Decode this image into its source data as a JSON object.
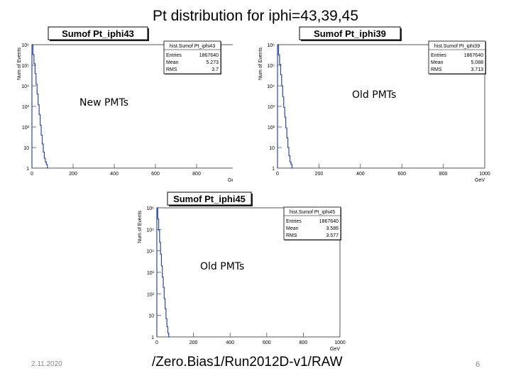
{
  "slide": {
    "title": "Pt distribution for iphi=43,39,45",
    "date": "2.11.2020",
    "path": "/Zero.Bias1/Run2012D-v1/RAW",
    "page": "6"
  },
  "chart_data": [
    {
      "type": "histogram",
      "title": "Sumof Pt_iphi43",
      "xlabel": "GeV",
      "ylabel": "Num of Events",
      "xlim": [
        0,
        1000
      ],
      "ylim": [
        1,
        1000000
      ],
      "yscale": "log",
      "xticks": [
        "0",
        "200",
        "400",
        "600",
        "800",
        "1000"
      ],
      "yticks": [
        "1",
        "10",
        "10²",
        "10³",
        "10⁴",
        "10⁵",
        "10⁶"
      ],
      "annotation": "New PMTs",
      "stats": {
        "name": "hist.Sumof Pt_iphi43",
        "rows": [
          [
            "Entries",
            "1867640"
          ],
          [
            "Mean",
            "5.273"
          ],
          [
            "RMS",
            "3.7"
          ]
        ]
      },
      "x": [
        0,
        5,
        10,
        15,
        20,
        25,
        30,
        35,
        40,
        45,
        50,
        55,
        60,
        65,
        70,
        75
      ],
      "values": [
        1000000,
        330000,
        120000,
        40000,
        12000,
        4000,
        1200,
        400,
        120,
        40,
        15,
        6,
        3,
        2,
        1.5,
        1
      ]
    },
    {
      "type": "histogram",
      "title": "Sumof Pt_iphi39",
      "xlabel": "GeV",
      "ylabel": "Num of Events",
      "xlim": [
        0,
        1000
      ],
      "ylim": [
        1,
        1000000
      ],
      "yscale": "log",
      "xticks": [
        "0",
        "200",
        "400",
        "600",
        "800",
        "1000"
      ],
      "yticks": [
        "1",
        "10",
        "10²",
        "10³",
        "10⁴",
        "10⁵",
        "10⁶"
      ],
      "annotation": "Old PMTs",
      "stats": {
        "name": "hist.Sumof Pt_iphi39",
        "rows": [
          [
            "Entries",
            "1867640"
          ],
          [
            "Mean",
            "5.088"
          ],
          [
            "RMS",
            "3.713"
          ]
        ]
      },
      "x": [
        0,
        5,
        10,
        15,
        20,
        25,
        30,
        35,
        40,
        45,
        50,
        55,
        60,
        65,
        70
      ],
      "values": [
        1000000,
        320000,
        110000,
        35000,
        10000,
        3000,
        900,
        300,
        90,
        30,
        10,
        4,
        2,
        1.5,
        1
      ]
    },
    {
      "type": "histogram",
      "title": "Sumof Pt_iphi45",
      "xlabel": "GeV",
      "ylabel": "Num of Events",
      "xlim": [
        0,
        1000
      ],
      "ylim": [
        1,
        1000000
      ],
      "yscale": "log",
      "xticks": [
        "0",
        "200",
        "400",
        "600",
        "800",
        "1000"
      ],
      "yticks": [
        "1",
        "10",
        "10²",
        "10³",
        "10⁴",
        "10⁵",
        "10⁶"
      ],
      "annotation": "Old PMTs",
      "stats": {
        "name": "hist.Sumof Pt_iphi45",
        "rows": [
          [
            "Entries",
            "1867640"
          ],
          [
            "Mean",
            "3.586"
          ],
          [
            "RMS",
            "3.577"
          ]
        ]
      },
      "x": [
        0,
        5,
        10,
        15,
        20,
        25,
        30,
        35,
        40,
        45,
        50,
        55,
        60,
        65
      ],
      "values": [
        1000000,
        300000,
        90000,
        25000,
        7000,
        2000,
        600,
        200,
        60,
        20,
        7,
        3,
        1.5,
        1
      ]
    }
  ]
}
